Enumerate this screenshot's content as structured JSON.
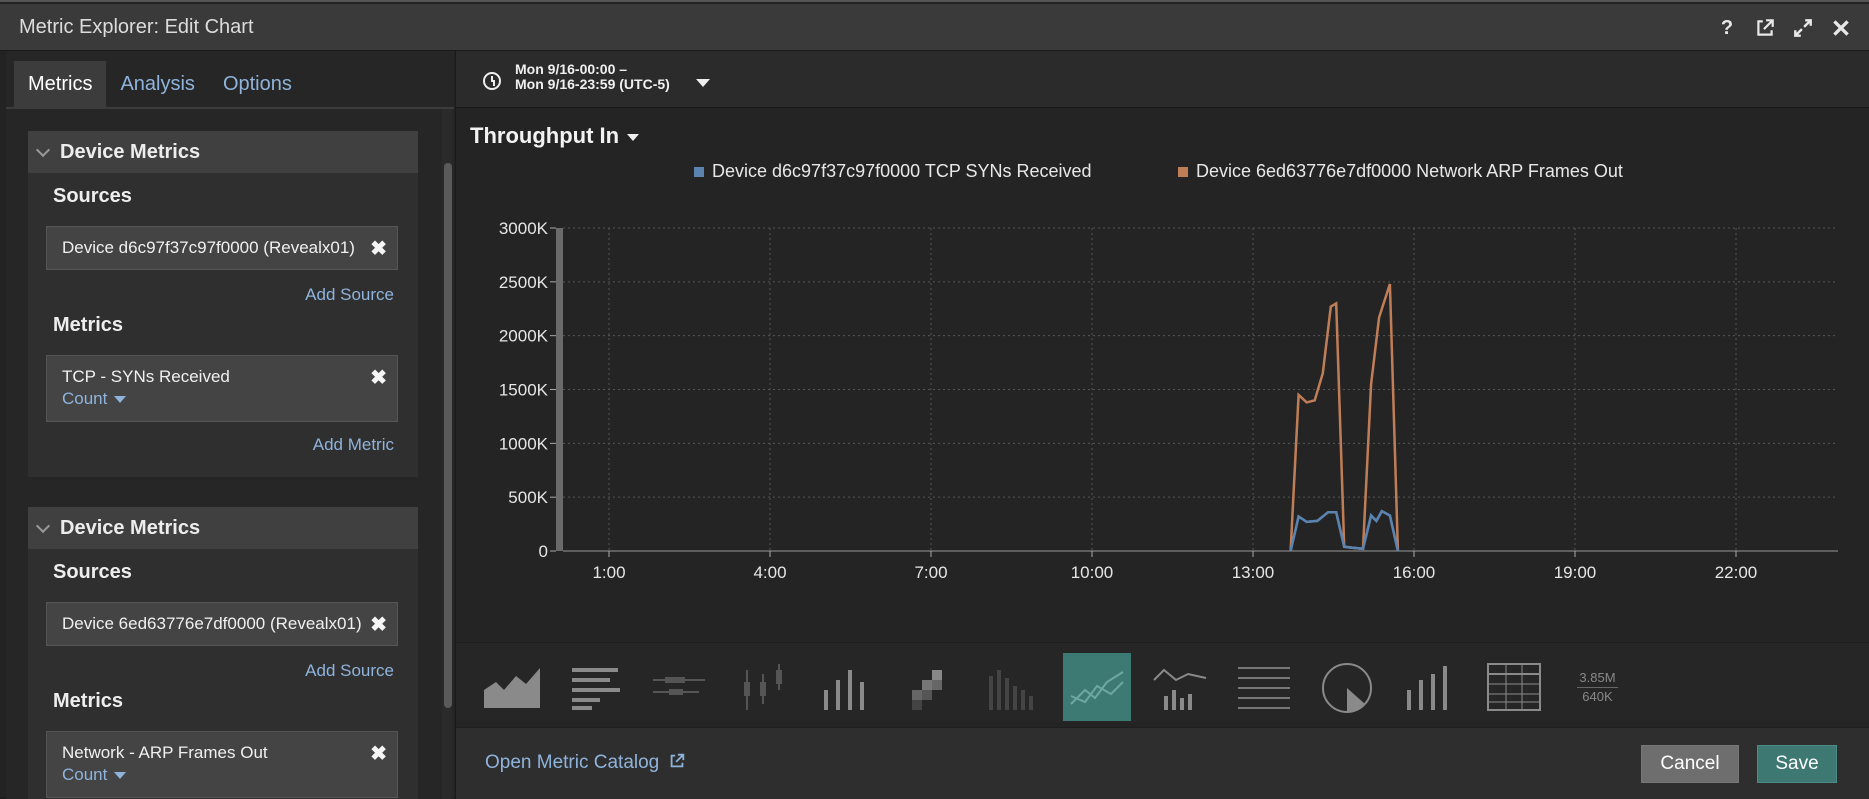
{
  "window": {
    "title": "Metric Explorer: Edit Chart",
    "icons": [
      "help-icon",
      "external-link-icon",
      "expand-icon",
      "close-icon"
    ]
  },
  "tabs": [
    {
      "label": "Metrics",
      "active": true
    },
    {
      "label": "Analysis",
      "active": false
    },
    {
      "label": "Options",
      "active": false
    }
  ],
  "groups": [
    {
      "title": "Device Metrics",
      "sources_label": "Sources",
      "source": "Device d6c97f37c97f0000 (Revealx01)",
      "add_source": "Add Source",
      "metrics_label": "Metrics",
      "metric": "TCP - SYNs Received",
      "metric_agg": "Count",
      "add_metric": "Add Metric"
    },
    {
      "title": "Device Metrics",
      "sources_label": "Sources",
      "source": "Device 6ed63776e7df0000 (Revealx01)",
      "add_source": "Add Source",
      "metrics_label": "Metrics",
      "metric": "Network - ARP Frames Out",
      "metric_agg": "Count"
    }
  ],
  "timebar": {
    "line1": "Mon 9/16-00:00 –",
    "line2": "Mon 9/16-23:59 (UTC-5)"
  },
  "chart": {
    "title": "Throughput In"
  },
  "chart_data": {
    "type": "line",
    "title": "Throughput In",
    "xlabel": "",
    "ylabel": "",
    "x_ticks": [
      "1:00",
      "4:00",
      "7:00",
      "10:00",
      "13:00",
      "16:00",
      "19:00",
      "22:00"
    ],
    "y_ticks": [
      "0",
      "500K",
      "1000K",
      "1500K",
      "2000K",
      "2500K",
      "3000K"
    ],
    "xlim": [
      0,
      24
    ],
    "ylim": [
      0,
      3000000
    ],
    "grid": true,
    "legend_position": "top",
    "series": [
      {
        "name": "Device d6c97f37c97f0000 TCP SYNs Received",
        "color": "#5b83b0",
        "x": [
          13.7,
          13.85,
          14.0,
          14.2,
          14.4,
          14.55,
          14.7,
          14.85,
          15.05,
          15.2,
          15.3,
          15.4,
          15.55,
          15.7
        ],
        "y": [
          0,
          320000,
          270000,
          280000,
          360000,
          360000,
          40000,
          30000,
          20000,
          330000,
          280000,
          370000,
          330000,
          0
        ]
      },
      {
        "name": "Device 6ed63776e7df0000 Network ARP Frames Out",
        "color": "#c07e58",
        "x": [
          13.7,
          13.85,
          14.0,
          14.15,
          14.3,
          14.45,
          14.55,
          14.7,
          14.85,
          15.05,
          15.2,
          15.35,
          15.55,
          15.7
        ],
        "y": [
          0,
          1450000,
          1380000,
          1400000,
          1650000,
          2270000,
          2300000,
          40000,
          30000,
          20000,
          1550000,
          2170000,
          2480000,
          0
        ]
      }
    ]
  },
  "viz_types": [
    {
      "name": "area-chart-icon",
      "active": false
    },
    {
      "name": "bar-list-icon",
      "active": false
    },
    {
      "name": "candlestick-horizontal-icon",
      "active": false
    },
    {
      "name": "candlestick-vertical-icon",
      "active": false
    },
    {
      "name": "column-chart-icon",
      "active": false
    },
    {
      "name": "heatmap-icon",
      "active": false
    },
    {
      "name": "histogram-icon",
      "active": false
    },
    {
      "name": "line-chart-icon",
      "active": true
    },
    {
      "name": "line-column-icon",
      "active": false
    },
    {
      "name": "list-icon",
      "active": false
    },
    {
      "name": "pie-chart-icon",
      "active": false
    },
    {
      "name": "status-bar-icon",
      "active": false
    },
    {
      "name": "table-icon",
      "active": false
    },
    {
      "name": "value-icon",
      "active": false
    }
  ],
  "value_icon": {
    "top": "3.85M",
    "bottom": "640K"
  },
  "footer": {
    "catalog": "Open Metric Catalog",
    "cancel": "Cancel",
    "save": "Save"
  }
}
